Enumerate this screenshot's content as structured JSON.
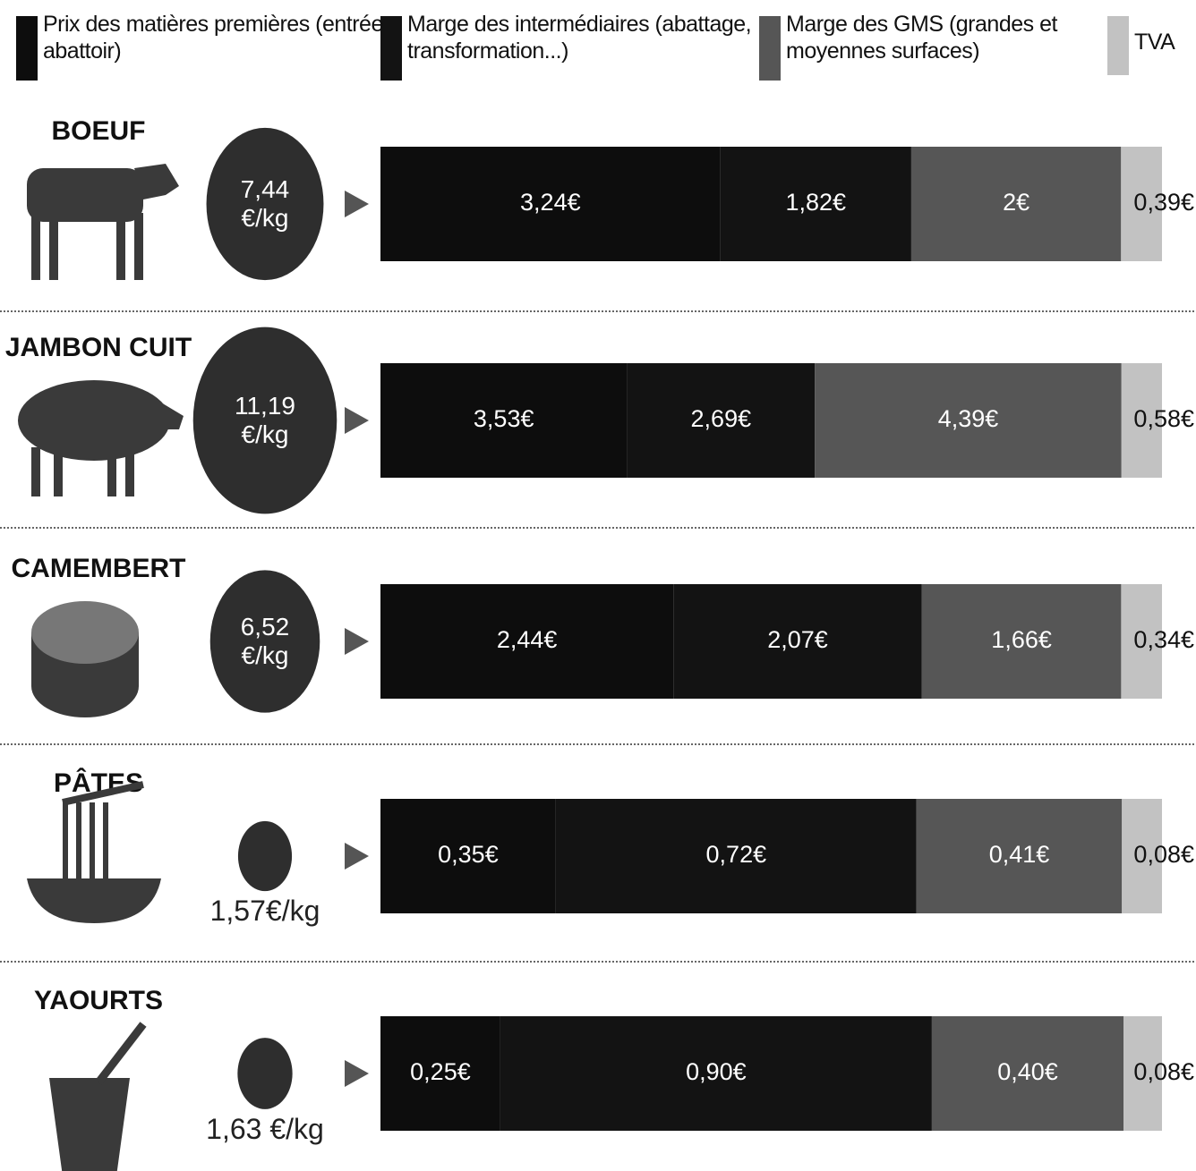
{
  "chart_data": {
    "type": "bar",
    "categories": [
      "BOEUF",
      "JAMBON CUIT",
      "CAMEMBERT",
      "PÂTES",
      "YAOURTS"
    ],
    "totals": [
      7.44,
      11.19,
      6.52,
      1.57,
      1.63
    ],
    "total_labels": [
      "7,44 €/kg",
      "11,19 €/kg",
      "6,52 €/kg",
      "1,57€/kg",
      "1,63 €/kg"
    ],
    "series": [
      {
        "name": "Prix des matières premières (entrée abattoir)",
        "color": "#0d0d0d",
        "values": [
          3.24,
          3.53,
          2.44,
          0.35,
          0.25
        ],
        "value_labels": [
          "3,24€",
          "3,53€",
          "2,44€",
          "0,35€",
          "0,25€"
        ]
      },
      {
        "name": "Marge des intermédiaires (abattage, transformation...)",
        "color": "#131313",
        "values": [
          1.82,
          2.69,
          2.07,
          0.72,
          0.9
        ],
        "value_labels": [
          "1,82€",
          "2,69€",
          "2,07€",
          "0,72€",
          "0,90€"
        ]
      },
      {
        "name": "Marge des GMS (grandes et moyennes surfaces)",
        "color": "#565656",
        "values": [
          2,
          4.39,
          1.66,
          0.41,
          0.4
        ],
        "value_labels": [
          "2€",
          "4,39€",
          "1,66€",
          "0,41€",
          "0,40€"
        ]
      },
      {
        "name": "TVA",
        "color": "#c2c2c2",
        "values": [
          0.39,
          0.58,
          0.34,
          0.08,
          0.08
        ],
        "value_labels": [
          "0,39€",
          "0,58€",
          "0,34€",
          "0,08€",
          "0,08€"
        ]
      }
    ]
  }
}
